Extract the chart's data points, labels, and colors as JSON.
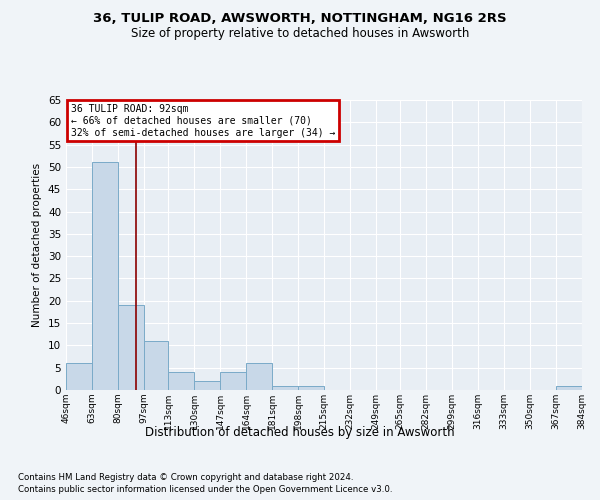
{
  "title": "36, TULIP ROAD, AWSWORTH, NOTTINGHAM, NG16 2RS",
  "subtitle": "Size of property relative to detached houses in Awsworth",
  "xlabel": "Distribution of detached houses by size in Awsworth",
  "ylabel": "Number of detached properties",
  "footnote1": "Contains HM Land Registry data © Crown copyright and database right 2024.",
  "footnote2": "Contains public sector information licensed under the Open Government Licence v3.0.",
  "annotation_line1": "36 TULIP ROAD: 92sqm",
  "annotation_line2": "← 66% of detached houses are smaller (70)",
  "annotation_line3": "32% of semi-detached houses are larger (34) →",
  "property_line_x": 92,
  "bar_edges": [
    46,
    63,
    80,
    97,
    113,
    130,
    147,
    164,
    181,
    198,
    215,
    232,
    249,
    265,
    282,
    299,
    316,
    333,
    350,
    367,
    384
  ],
  "bar_values": [
    6,
    51,
    19,
    11,
    4,
    2,
    4,
    6,
    1,
    1,
    0,
    0,
    0,
    0,
    0,
    0,
    0,
    0,
    0,
    1
  ],
  "bar_color": "#c8d8e8",
  "bar_edge_color": "#7aaac8",
  "vline_color": "#8b0000",
  "annotation_box_color": "#cc0000",
  "background_color": "#e8eef4",
  "fig_background_color": "#f0f4f8",
  "grid_color": "#ffffff",
  "ylim": [
    0,
    65
  ],
  "yticks": [
    0,
    5,
    10,
    15,
    20,
    25,
    30,
    35,
    40,
    45,
    50,
    55,
    60,
    65
  ]
}
